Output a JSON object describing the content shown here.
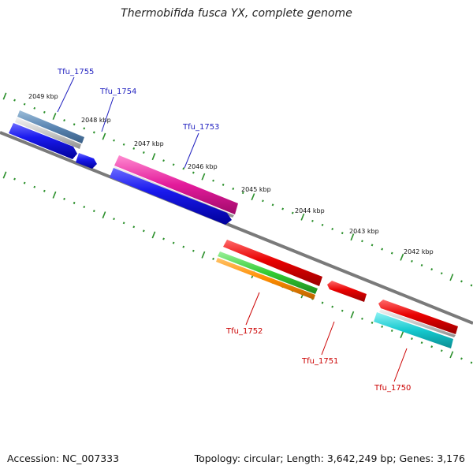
{
  "title": "Thermobifida fusca YX, complete genome",
  "footer": {
    "accession_label": "Accession:",
    "accession": "NC_007333",
    "topology_label": "Topology:",
    "topology": "circular",
    "length_label": "Length:",
    "length": "3,642,249 bp",
    "genes_label": "Genes:",
    "genes": "3,176"
  },
  "colors": {
    "backbone": "#7a7a7a",
    "tick": "#2a8f2a",
    "forward_label": "#1f1fbf",
    "reverse_label": "#cc0000"
  },
  "scale_labels": [
    "2049 kbp",
    "2048 kbp",
    "2047 kbp",
    "2046 kbp",
    "2045 kbp",
    "2044 kbp",
    "2043 kbp",
    "2042 kbp"
  ],
  "genes": [
    {
      "label": "Tfu_1755",
      "strand": "forward"
    },
    {
      "label": "Tfu_1754",
      "strand": "forward"
    },
    {
      "label": "Tfu_1753",
      "strand": "forward"
    },
    {
      "label": "Tfu_1752",
      "strand": "reverse"
    },
    {
      "label": "Tfu_1751",
      "strand": "reverse"
    },
    {
      "label": "Tfu_1750",
      "strand": "reverse"
    }
  ],
  "feature_colors": [
    "#2222ee",
    "#5b86b3",
    "#e31b9b",
    "#e80000",
    "#33cc33",
    "#ff8c00",
    "#15c9cf",
    "#c0c0c0"
  ]
}
